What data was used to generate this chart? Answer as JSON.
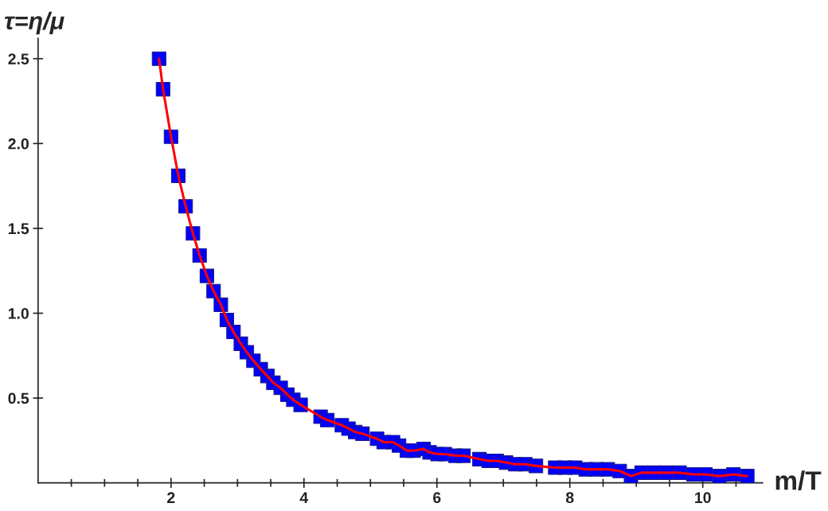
{
  "chart_data": {
    "type": "line",
    "xlabel": "m/T",
    "ylabel": "τ=η/μ",
    "x": [
      1.82,
      1.88,
      2.0,
      2.11,
      2.22,
      2.33,
      2.43,
      2.54,
      2.64,
      2.75,
      2.84,
      2.94,
      3.05,
      3.14,
      3.24,
      3.35,
      3.45,
      3.54,
      3.65,
      3.75,
      3.84,
      3.95,
      4.25,
      4.35,
      4.57,
      4.67,
      4.77,
      4.88,
      5.1,
      5.2,
      5.34,
      5.43,
      5.55,
      5.65,
      5.8,
      5.89,
      6.01,
      6.12,
      6.28,
      6.4,
      6.64,
      6.78,
      6.9,
      7.04,
      7.18,
      7.33,
      7.49,
      7.78,
      7.93,
      8.08,
      8.24,
      8.4,
      8.57,
      8.75,
      8.92,
      9.08,
      9.27,
      9.45,
      9.65,
      9.86,
      10.04,
      10.25,
      10.46,
      10.67
    ],
    "series": [
      {
        "color": "#ff0000",
        "marker": "none",
        "line_style": "solid",
        "values": [
          2.5,
          2.32,
          2.04,
          1.81,
          1.63,
          1.47,
          1.34,
          1.22,
          1.13,
          1.05,
          0.96,
          0.89,
          0.82,
          0.77,
          0.72,
          0.67,
          0.63,
          0.59,
          0.56,
          0.52,
          0.49,
          0.46,
          0.39,
          0.37,
          0.34,
          0.32,
          0.3,
          0.29,
          0.26,
          0.24,
          0.24,
          0.22,
          0.19,
          0.19,
          0.2,
          0.18,
          0.17,
          0.17,
          0.16,
          0.16,
          0.14,
          0.13,
          0.13,
          0.12,
          0.11,
          0.11,
          0.1,
          0.09,
          0.09,
          0.09,
          0.08,
          0.08,
          0.08,
          0.07,
          0.04,
          0.06,
          0.06,
          0.06,
          0.06,
          0.05,
          0.05,
          0.04,
          0.05,
          0.04
        ]
      },
      {
        "type": "scatter",
        "color": "#0000ff",
        "marker": "square",
        "values": [
          2.5,
          2.32,
          2.04,
          1.81,
          1.63,
          1.47,
          1.34,
          1.22,
          1.13,
          1.05,
          0.96,
          0.89,
          0.82,
          0.77,
          0.72,
          0.67,
          0.63,
          0.59,
          0.56,
          0.52,
          0.49,
          0.46,
          0.39,
          0.37,
          0.34,
          0.32,
          0.3,
          0.29,
          0.26,
          0.24,
          0.24,
          0.22,
          0.19,
          0.19,
          0.2,
          0.18,
          0.17,
          0.17,
          0.16,
          0.16,
          0.14,
          0.13,
          0.13,
          0.12,
          0.11,
          0.11,
          0.1,
          0.09,
          0.09,
          0.09,
          0.08,
          0.08,
          0.08,
          0.07,
          0.04,
          0.06,
          0.06,
          0.06,
          0.06,
          0.05,
          0.05,
          0.04,
          0.05,
          0.04
        ]
      }
    ],
    "xlim": [
      0,
      10.9
    ],
    "ylim": [
      0,
      2.62
    ],
    "xticks": [
      {
        "value": 0.5,
        "label": null
      },
      {
        "value": 1,
        "label": null
      },
      {
        "value": 1.5,
        "label": null
      },
      2,
      {
        "value": 2.5,
        "label": null
      },
      {
        "value": 3,
        "label": null
      },
      {
        "value": 3.5,
        "label": null
      },
      4,
      {
        "value": 4.5,
        "label": null
      },
      {
        "value": 5,
        "label": null
      },
      {
        "value": 5.5,
        "label": null
      },
      6,
      {
        "value": 6.5,
        "label": null
      },
      {
        "value": 7,
        "label": null
      },
      {
        "value": 7.5,
        "label": null
      },
      8,
      {
        "value": 8.5,
        "label": null
      },
      {
        "value": 9,
        "label": null
      },
      {
        "value": 9.5,
        "label": null
      },
      10,
      {
        "value": 10.5,
        "label": null
      }
    ],
    "yticks": [
      {
        "value": 0.5,
        "label": "0.5"
      },
      {
        "value": 1,
        "label": "1.0"
      },
      {
        "value": 1.5,
        "label": "1.5"
      },
      {
        "value": 2,
        "label": "2.0"
      },
      {
        "value": 2.5,
        "label": "2.5"
      }
    ],
    "grid": false,
    "legend": false
  }
}
